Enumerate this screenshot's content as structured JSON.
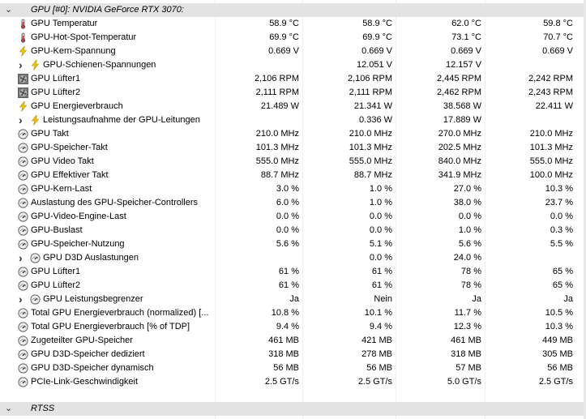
{
  "group_header": {
    "title": "GPU [#0]: NVIDIA GeForce RTX 3070:"
  },
  "group_footer": {
    "title": "RTSS"
  },
  "rows": [
    {
      "icon": "thermometer",
      "label": "GPU Temperatur",
      "v": [
        "58.9 °C",
        "58.9 °C",
        "62.0 °C",
        "59.8 °C"
      ]
    },
    {
      "icon": "thermometer",
      "label": "GPU-Hot-Spot-Temperatur",
      "v": [
        "69.9 °C",
        "69.9 °C",
        "73.1 °C",
        "70.7 °C"
      ]
    },
    {
      "icon": "bolt",
      "label": "GPU-Kern-Spannung",
      "v": [
        "0.669 V",
        "0.669 V",
        "0.669 V",
        "0.669 V"
      ]
    },
    {
      "icon": "bolt",
      "expand": true,
      "label": "GPU-Schienen-Spannungen",
      "v": [
        "",
        "12.051 V",
        "12.157 V",
        ""
      ]
    },
    {
      "icon": "fan",
      "label": "GPU Lüfter1",
      "v": [
        "2,106 RPM",
        "2,106 RPM",
        "2,445 RPM",
        "2,242 RPM"
      ]
    },
    {
      "icon": "fan",
      "label": "GPU Lüfter2",
      "v": [
        "2,111 RPM",
        "2,111 RPM",
        "2,462 RPM",
        "2,243 RPM"
      ]
    },
    {
      "icon": "bolt",
      "label": "GPU Energieverbrauch",
      "v": [
        "21.489 W",
        "21.341 W",
        "38.568 W",
        "22.411 W"
      ]
    },
    {
      "icon": "bolt",
      "expand": true,
      "label": "Leistungsaufnahme der GPU-Leitungen",
      "v": [
        "",
        "0.336 W",
        "17.889 W",
        ""
      ]
    },
    {
      "icon": "gauge",
      "label": "GPU Takt",
      "v": [
        "210.0 MHz",
        "210.0 MHz",
        "270.0 MHz",
        "210.0 MHz"
      ]
    },
    {
      "icon": "gauge",
      "label": "GPU-Speicher-Takt",
      "v": [
        "101.3 MHz",
        "101.3 MHz",
        "202.5 MHz",
        "101.3 MHz"
      ]
    },
    {
      "icon": "gauge",
      "label": "GPU Video Takt",
      "v": [
        "555.0 MHz",
        "555.0 MHz",
        "840.0 MHz",
        "555.0 MHz"
      ]
    },
    {
      "icon": "gauge",
      "label": "GPU Effektiver Takt",
      "v": [
        "88.7 MHz",
        "88.7 MHz",
        "341.9 MHz",
        "100.0 MHz"
      ]
    },
    {
      "icon": "gauge",
      "label": "GPU-Kern-Last",
      "v": [
        "3.0 %",
        "1.0 %",
        "27.0 %",
        "10.3 %"
      ]
    },
    {
      "icon": "gauge",
      "label": "Auslastung des GPU-Speicher-Controllers",
      "v": [
        "6.0 %",
        "1.0 %",
        "38.0 %",
        "23.7 %"
      ]
    },
    {
      "icon": "gauge",
      "label": "GPU-Video-Engine-Last",
      "v": [
        "0.0 %",
        "0.0 %",
        "0.0 %",
        "0.0 %"
      ]
    },
    {
      "icon": "gauge",
      "label": "GPU-Buslast",
      "v": [
        "0.0 %",
        "0.0 %",
        "1.0 %",
        "0.3 %"
      ]
    },
    {
      "icon": "gauge",
      "label": "GPU-Speicher-Nutzung",
      "v": [
        "5.6 %",
        "5.1 %",
        "5.6 %",
        "5.5 %"
      ]
    },
    {
      "icon": "gauge",
      "expand": true,
      "label": "GPU D3D Auslastungen",
      "v": [
        "",
        "0.0 %",
        "24.0 %",
        ""
      ]
    },
    {
      "icon": "gauge",
      "label": "GPU Lüfter1",
      "v": [
        "61 %",
        "61 %",
        "78 %",
        "65 %"
      ]
    },
    {
      "icon": "gauge",
      "label": "GPU Lüfter2",
      "v": [
        "61 %",
        "61 %",
        "78 %",
        "65 %"
      ]
    },
    {
      "icon": "gauge",
      "expand": true,
      "label": "GPU Leistungsbegrenzer",
      "v": [
        "Ja",
        "Nein",
        "Ja",
        "Ja"
      ]
    },
    {
      "icon": "gauge",
      "label": "Total GPU Energieverbrauch (normalized) [...",
      "v": [
        "10.8 %",
        "10.1 %",
        "11.7 %",
        "10.5 %"
      ]
    },
    {
      "icon": "gauge",
      "label": "Total GPU Energieverbrauch [% of TDP]",
      "v": [
        "9.4 %",
        "9.4 %",
        "12.3 %",
        "10.3 %"
      ]
    },
    {
      "icon": "gauge",
      "label": "Zugeteilter GPU-Speicher",
      "v": [
        "461 MB",
        "421 MB",
        "461 MB",
        "449 MB"
      ]
    },
    {
      "icon": "gauge",
      "label": "GPU D3D-Speicher dediziert",
      "v": [
        "318 MB",
        "278 MB",
        "318 MB",
        "305 MB"
      ]
    },
    {
      "icon": "gauge",
      "label": "GPU D3D-Speicher dynamisch",
      "v": [
        "56 MB",
        "56 MB",
        "57 MB",
        "56 MB"
      ]
    },
    {
      "icon": "gauge",
      "label": "PCIe-Link-Geschwindigkeit",
      "v": [
        "2.5 GT/s",
        "2.5 GT/s",
        "5.0 GT/s",
        "2.5 GT/s"
      ]
    }
  ]
}
